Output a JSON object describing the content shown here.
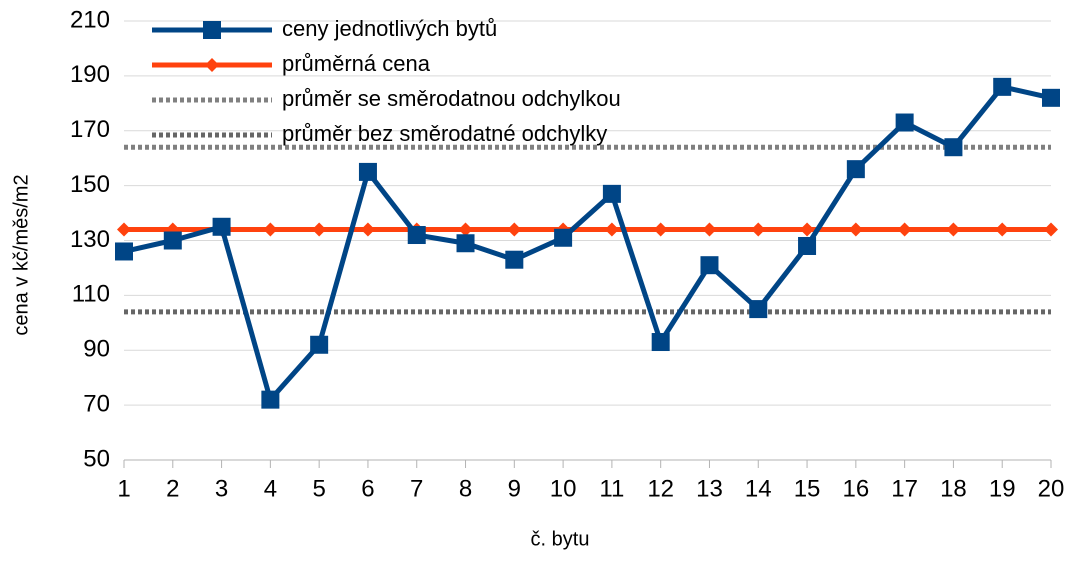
{
  "chart_data": {
    "type": "line",
    "xlabel": "č. bytu",
    "ylabel": "cena v kč/měs/m2",
    "categories": [
      "1",
      "2",
      "3",
      "4",
      "5",
      "6",
      "7",
      "8",
      "9",
      "10",
      "11",
      "12",
      "13",
      "14",
      "15",
      "16",
      "17",
      "18",
      "19",
      "20"
    ],
    "series": [
      {
        "name": "ceny jednotlivých bytů",
        "color": "#004586",
        "marker": "square",
        "dash": "solid",
        "values": [
          126,
          130,
          135,
          72,
          92,
          155,
          132,
          129,
          123,
          131,
          147,
          93,
          121,
          105,
          128,
          156,
          173,
          164,
          186,
          182
        ]
      },
      {
        "name": "průměrná cena",
        "color": "#ff420e",
        "marker": "diamond",
        "dash": "solid",
        "values": [
          134,
          134,
          134,
          134,
          134,
          134,
          134,
          134,
          134,
          134,
          134,
          134,
          134,
          134,
          134,
          134,
          134,
          134,
          134,
          134
        ]
      },
      {
        "name": "průměr se směrodatnou odchylkou",
        "color": "#808080",
        "marker": "none",
        "dash": "dotted",
        "values": [
          164,
          164,
          164,
          164,
          164,
          164,
          164,
          164,
          164,
          164,
          164,
          164,
          164,
          164,
          164,
          164,
          164,
          164,
          164,
          164
        ]
      },
      {
        "name": "průměr bez směrodatné odchylky",
        "color": "#666666",
        "marker": "none",
        "dash": "dotted",
        "values": [
          104,
          104,
          104,
          104,
          104,
          104,
          104,
          104,
          104,
          104,
          104,
          104,
          104,
          104,
          104,
          104,
          104,
          104,
          104,
          104
        ]
      }
    ],
    "ylim": [
      50,
      210
    ],
    "yticks": [
      50,
      70,
      90,
      110,
      130,
      150,
      170,
      190,
      210
    ],
    "grid": true,
    "legend": "upper left"
  }
}
